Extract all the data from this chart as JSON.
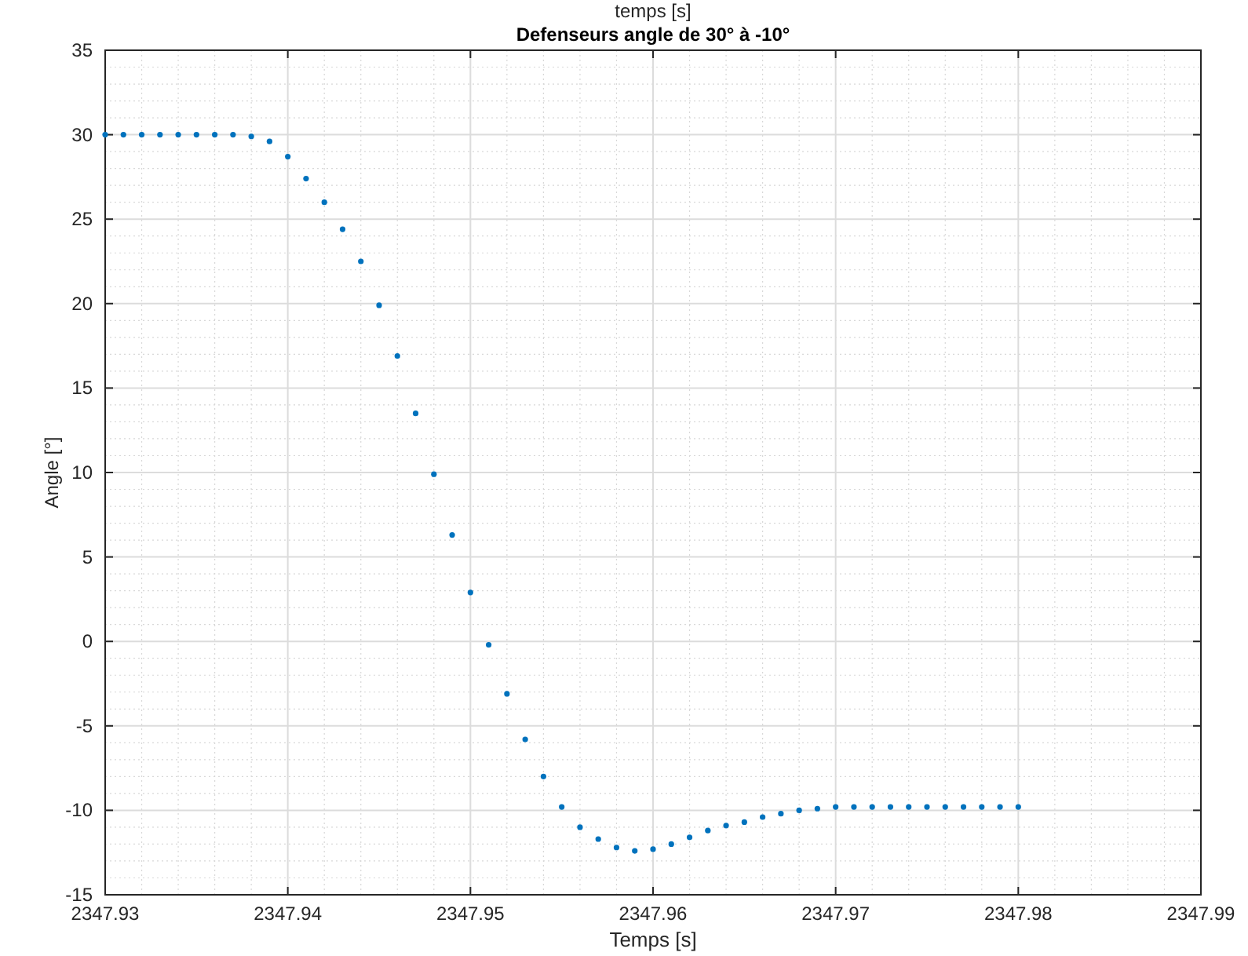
{
  "chart_data": {
    "type": "scatter",
    "title": "Defenseurs angle de 30° à -10°",
    "xlabel": "Temps [s]",
    "ylabel": "Angle [°]",
    "annotations": [
      "temps [s]"
    ],
    "x": [
      2347.93,
      2347.931,
      2347.932,
      2347.933,
      2347.934,
      2347.935,
      2347.936,
      2347.937,
      2347.938,
      2347.939,
      2347.94,
      2347.941,
      2347.942,
      2347.943,
      2347.944,
      2347.945,
      2347.946,
      2347.947,
      2347.948,
      2347.949,
      2347.95,
      2347.951,
      2347.952,
      2347.953,
      2347.954,
      2347.955,
      2347.956,
      2347.957,
      2347.958,
      2347.959,
      2347.96,
      2347.961,
      2347.962,
      2347.963,
      2347.964,
      2347.965,
      2347.966,
      2347.967,
      2347.968,
      2347.969,
      2347.97,
      2347.971,
      2347.972,
      2347.973,
      2347.974,
      2347.975,
      2347.976,
      2347.977,
      2347.978,
      2347.979,
      2347.98
    ],
    "series": [
      {
        "color": "#0072bd",
        "values": [
          30,
          30,
          30,
          30,
          30,
          30,
          30,
          30,
          29.9,
          29.6,
          28.7,
          27.4,
          26.0,
          24.4,
          22.5,
          19.9,
          16.9,
          13.5,
          9.9,
          6.3,
          2.9,
          -0.2,
          -3.1,
          -5.8,
          -8.0,
          -9.8,
          -11.0,
          -11.7,
          -12.2,
          -12.4,
          -12.3,
          -12.0,
          -11.6,
          -11.2,
          -10.9,
          -10.7,
          -10.4,
          -10.2,
          -10.0,
          -9.9,
          -9.8,
          -9.8,
          -9.8,
          -9.8,
          -9.8,
          -9.8,
          -9.8,
          -9.8,
          -9.8,
          -9.8,
          -9.8
        ]
      }
    ],
    "xlim": [
      2347.93,
      2347.99
    ],
    "xticks": [
      {
        "value": 2347.93,
        "label": "2347.93"
      },
      {
        "value": 2347.94,
        "label": "2347.94"
      },
      {
        "value": 2347.95,
        "label": "2347.95"
      },
      {
        "value": 2347.96,
        "label": "2347.96"
      },
      {
        "value": 2347.97,
        "label": "2347.97"
      },
      {
        "value": 2347.98,
        "label": "2347.98"
      },
      {
        "value": 2347.99,
        "label": "2347.99"
      }
    ],
    "ylim": [
      -15,
      35
    ],
    "yticks": [
      -15,
      -10,
      -5,
      0,
      5,
      10,
      15,
      20,
      25,
      30,
      35
    ],
    "grid": true,
    "marker": "circle"
  }
}
